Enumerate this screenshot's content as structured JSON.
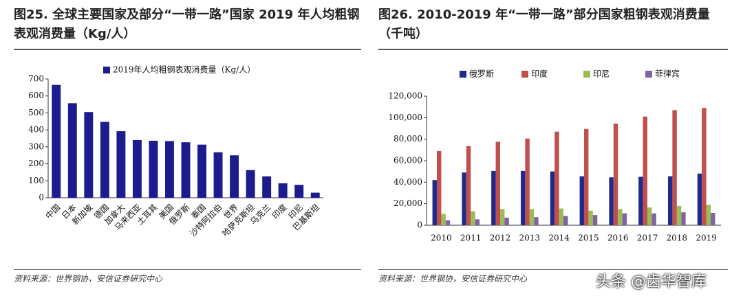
{
  "chart_data": [
    {
      "type": "bar",
      "title": "图25. 全球主要国家及部分“一带一路”国家 2019 年人均粗钢表观消费量（Kg/人）",
      "source": "资料来源：世界钢协，安信证券研究中心",
      "categories": [
        "中国",
        "日本",
        "新加坡",
        "德国",
        "加拿大",
        "马来西亚",
        "土耳其",
        "美国",
        "俄罗斯",
        "泰国",
        "沙特阿拉伯",
        "世界",
        "哈萨克斯坦",
        "乌克兰",
        "印度",
        "印尼",
        "巴基斯坦"
      ],
      "series": [
        {
          "name": "2019年人均粗钢表观消费量（Kg/人）",
          "color": "#1c1c8f",
          "values": [
            665,
            557,
            505,
            447,
            392,
            340,
            336,
            334,
            327,
            313,
            268,
            250,
            163,
            126,
            85,
            76,
            30
          ]
        }
      ],
      "ylim": [
        0,
        700
      ],
      "yticks": [
        0,
        100,
        200,
        300,
        400,
        500,
        600,
        700
      ]
    },
    {
      "type": "bar",
      "title": "图26. 2010-2019 年“一带一路”部分国家粗钢表观消费量（千吨）",
      "source": "资料来源：世界钢协，安信证券研究中心",
      "categories": [
        "2010",
        "2011",
        "2012",
        "2013",
        "2014",
        "2015",
        "2016",
        "2017",
        "2018",
        "2019"
      ],
      "series": [
        {
          "name": "俄罗斯",
          "color": "#1f2a8f",
          "values": [
            42000,
            49000,
            50500,
            50500,
            50000,
            45500,
            44500,
            45000,
            45500,
            48000
          ]
        },
        {
          "name": "印度",
          "color": "#c0504d",
          "values": [
            69000,
            73500,
            77500,
            80500,
            87000,
            89500,
            94500,
            101000,
            107000,
            109000
          ]
        },
        {
          "name": "印尼",
          "color": "#9bbb59",
          "values": [
            10500,
            13000,
            15000,
            15000,
            15500,
            13500,
            15000,
            16500,
            18000,
            19000
          ]
        },
        {
          "name": "菲律宾",
          "color": "#8064a2",
          "values": [
            4500,
            5500,
            7000,
            7500,
            8500,
            9500,
            11000,
            11000,
            12000,
            11500
          ]
        }
      ],
      "ylim": [
        0,
        120000
      ],
      "yticks": [
        0,
        {
          "value": 20000,
          "label": "20,000"
        },
        {
          "value": 40000,
          "label": "40,000"
        },
        {
          "value": 60000,
          "label": "60,000"
        },
        {
          "value": 80000,
          "label": "80,000"
        },
        {
          "value": 100000,
          "label": "100,000"
        },
        {
          "value": 120000,
          "label": "120,000"
        }
      ]
    }
  ],
  "watermark": "头条 @齿华智库"
}
